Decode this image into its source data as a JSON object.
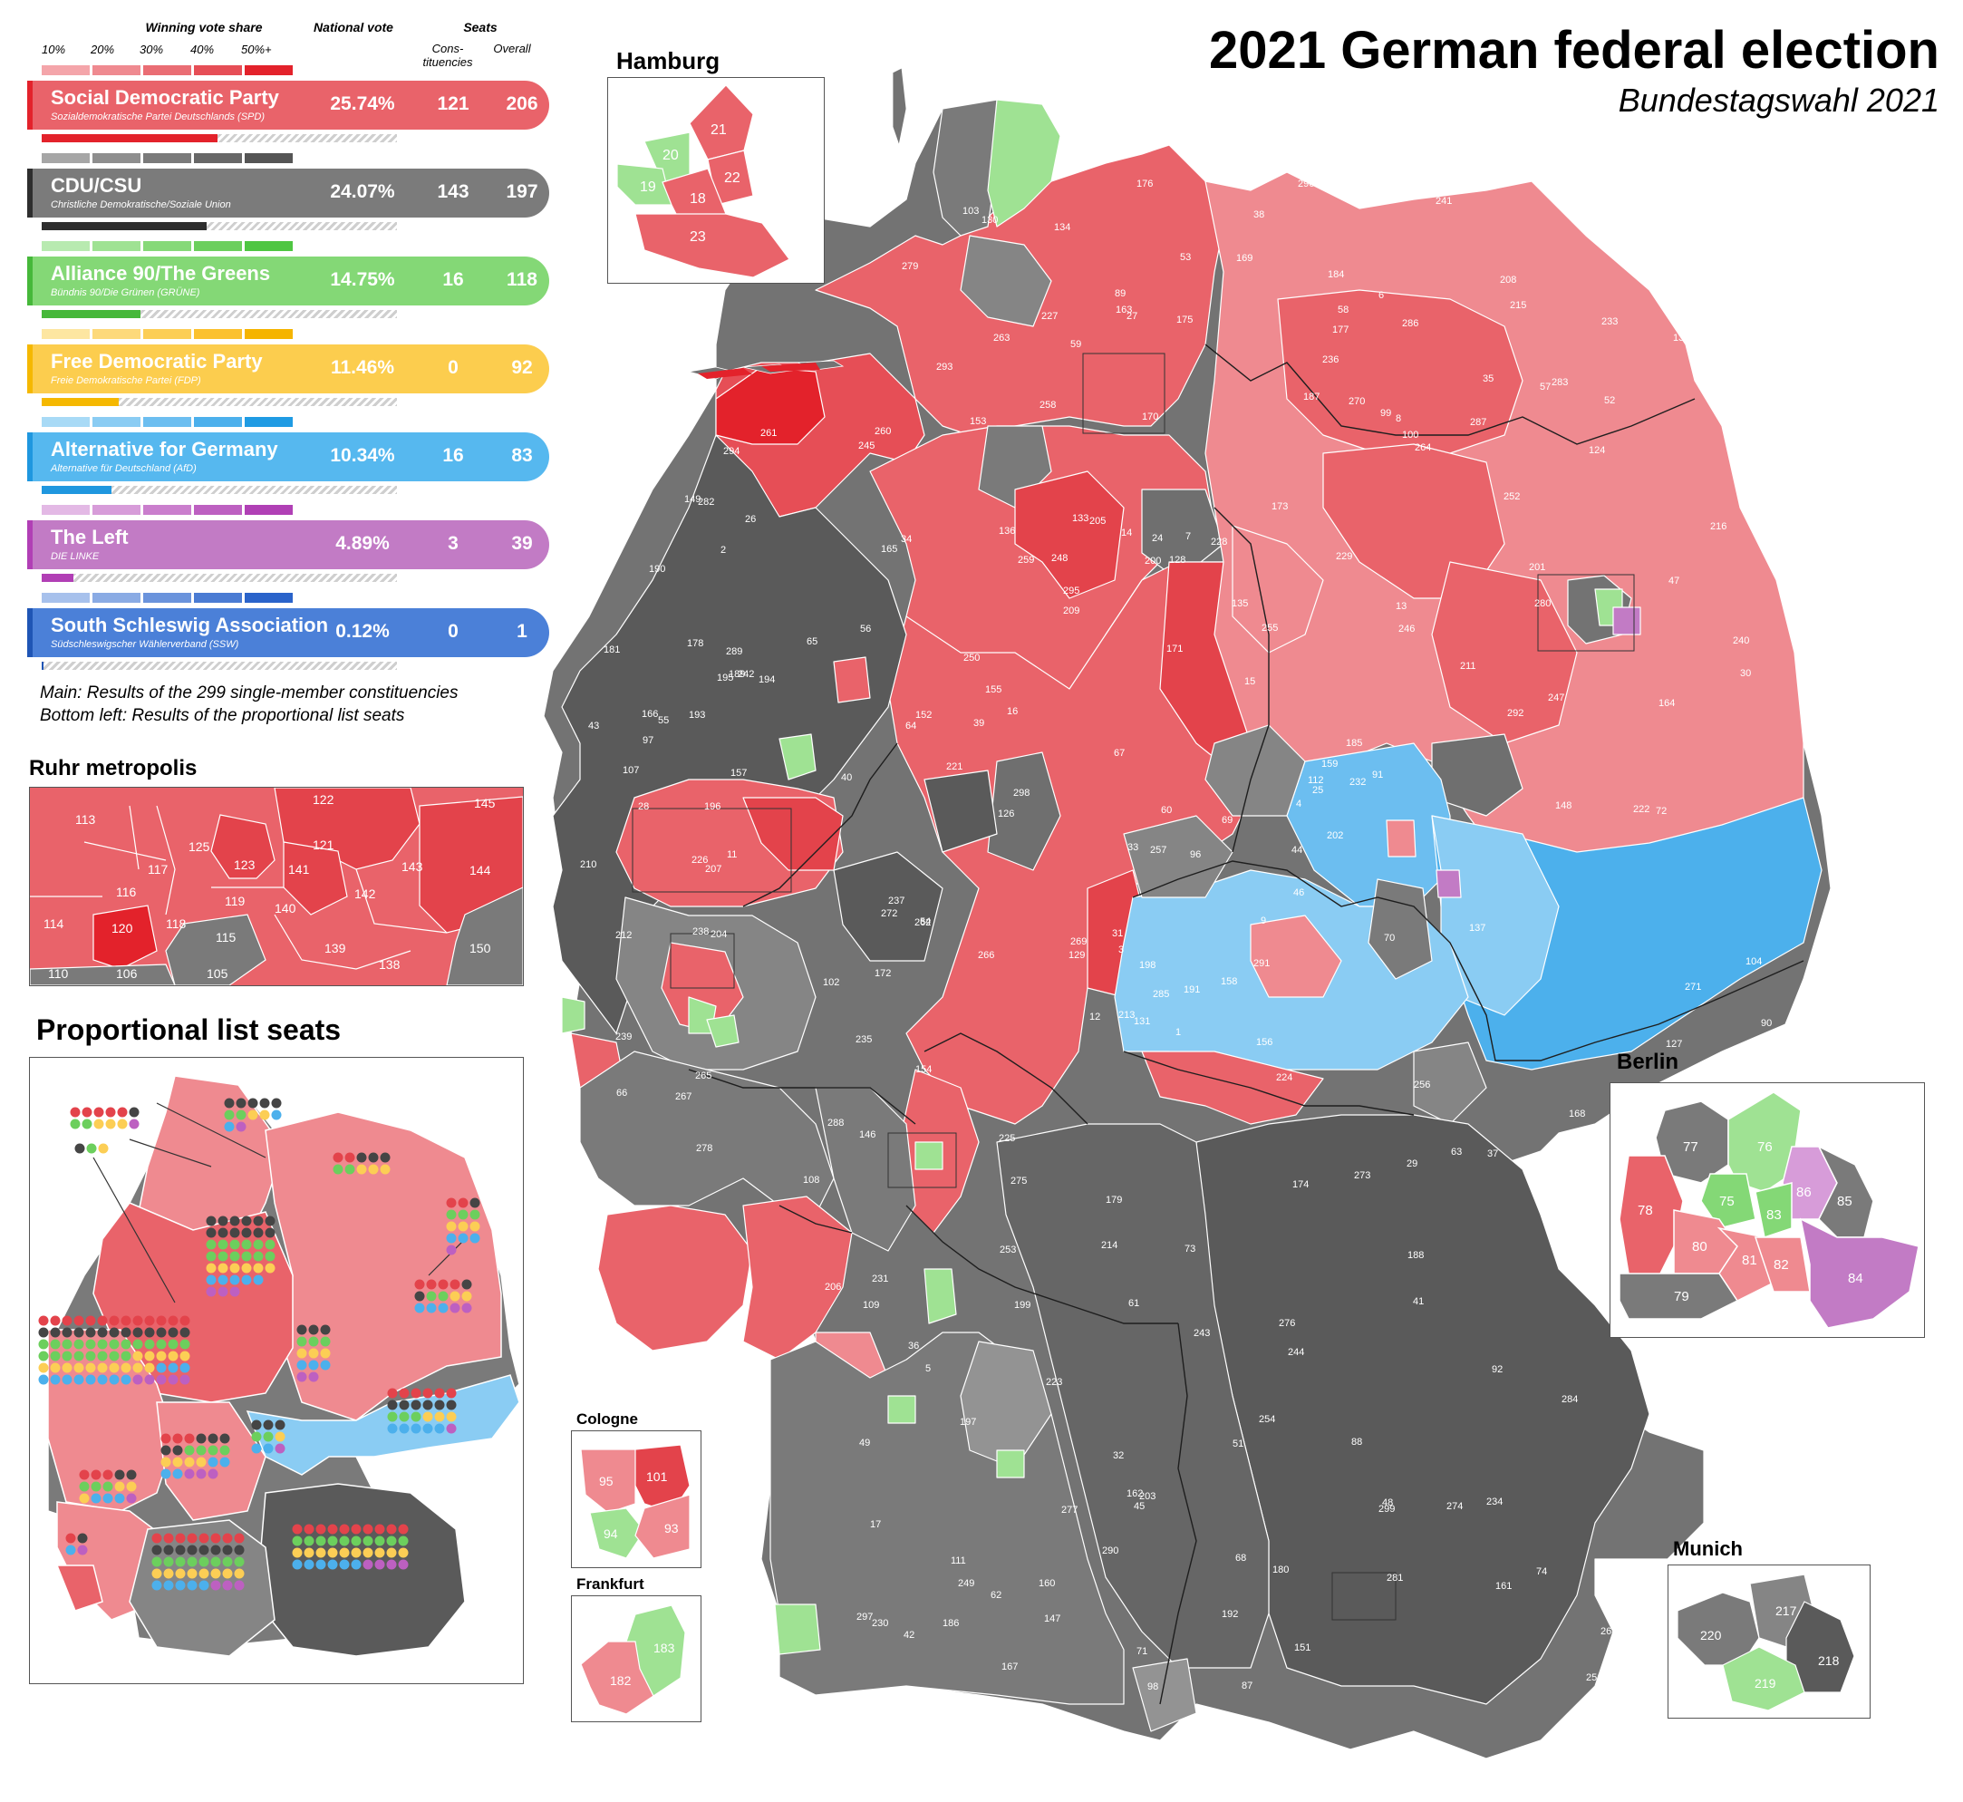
{
  "title": "2021 German federal election",
  "subtitle": "Bundestagswahl 2021",
  "legend": {
    "header_share": "Winning vote share",
    "header_national": "National vote",
    "header_seats": "Seats",
    "header_const": "Cons-tituencies",
    "header_overall": "Overall",
    "scale": [
      "10%",
      "20%",
      "30%",
      "40%",
      "50%+"
    ],
    "parties": [
      {
        "name": "Social Democratic Party",
        "native": "Sozialdemokratische Partei Deutschlands (SPD)",
        "vote": "25.74%",
        "const": "121",
        "overall": "206",
        "color": "#e9636a",
        "bar": "#e3222b",
        "scale": [
          "#f4a5aa",
          "#ef8a90",
          "#ea6d74",
          "#e64e56",
          "#e3222b"
        ],
        "list_fraction": 0.187
      },
      {
        "name": "CDU/CSU",
        "native": "Christliche Demokratische/Soziale Union",
        "vote": "24.07%",
        "const": "143",
        "overall": "197",
        "color": "#7b7b7b",
        "bar": "#2e2e2e",
        "scale": [
          "#a6a6a6",
          "#8e8e8e",
          "#7a7a7a",
          "#676767",
          "#555555"
        ],
        "list_fraction": 0.175
      },
      {
        "name": "Alliance 90/The Greens",
        "native": "Bündnis 90/Die Grünen (GRÜNE)",
        "vote": "14.75%",
        "const": "16",
        "overall": "118",
        "color": "#84d876",
        "bar": "#46b83a",
        "scale": [
          "#b8eab0",
          "#9fe293",
          "#86d978",
          "#6ccf5d",
          "#4fc642"
        ],
        "list_fraction": 0.105
      },
      {
        "name": "Free Democratic Party",
        "native": "Freie Demokratische Partei (FDP)",
        "vote": "11.46%",
        "const": "0",
        "overall": "92",
        "color": "#fccd4e",
        "bar": "#f5b800",
        "scale": [
          "#fde6a1",
          "#fdd97a",
          "#fcce55",
          "#fbc12e",
          "#f5b400"
        ],
        "list_fraction": 0.082
      },
      {
        "name": "Alternative for Germany",
        "native": "Alternative für Deutschland (AfD)",
        "vote": "10.34%",
        "const": "16",
        "overall": "83",
        "color": "#56b8ef",
        "bar": "#1f97df",
        "scale": [
          "#a8daf6",
          "#8accf3",
          "#6cbef0",
          "#4cb0ec",
          "#1f9be3"
        ],
        "list_fraction": 0.074
      },
      {
        "name": "The Left",
        "native": "DIE LINKE",
        "vote": "4.89%",
        "const": "3",
        "overall": "39",
        "color": "#c27bc5",
        "bar": "#b13fb5",
        "scale": [
          "#e3b9e5",
          "#d79cd9",
          "#ca7ecd",
          "#bd60c1",
          "#b040b5"
        ],
        "list_fraction": 0.034
      },
      {
        "name": "South Schleswig Association",
        "native": "Südschleswigscher Wählerverband (SSW)",
        "vote": "0.12%",
        "const": "0",
        "overall": "1",
        "color": "#4b80d8",
        "bar": "#1f55b5",
        "scale": [
          "#a7c1ec",
          "#8aabe4",
          "#6a93dc",
          "#4a7bd3",
          "#2a63ca"
        ],
        "list_fraction": 0.001
      }
    ]
  },
  "notes": [
    "Main: Results of the 299 single-member constituencies",
    "Bottom left: Results of the proportional list seats"
  ],
  "insets": {
    "hamburg": {
      "title": "Hamburg",
      "labels": [
        "21",
        "20",
        "22",
        "19",
        "18",
        "23"
      ]
    },
    "ruhr": {
      "title": "Ruhr metropolis",
      "labels": [
        "113",
        "122",
        "145",
        "121",
        "125",
        "117",
        "123",
        "141",
        "143",
        "144",
        "116",
        "142",
        "119",
        "140",
        "114",
        "118",
        "120",
        "115",
        "139",
        "150",
        "138",
        "110",
        "106",
        "105"
      ]
    },
    "proportional": {
      "title": "Proportional list seats"
    },
    "berlin": {
      "title": "Berlin",
      "labels": [
        "77",
        "76",
        "78",
        "75",
        "86",
        "85",
        "83",
        "80",
        "81",
        "82",
        "79",
        "84"
      ]
    },
    "cologne": {
      "title": "Cologne",
      "labels": [
        "101",
        "95",
        "94",
        "93"
      ]
    },
    "frankfurt": {
      "title": "Frankfurt",
      "labels": [
        "183",
        "182"
      ]
    },
    "munich": {
      "title": "Munich",
      "labels": [
        "217",
        "220",
        "218",
        "219"
      ]
    }
  },
  "map_labels": [
    "1",
    "2",
    "3",
    "4",
    "5",
    "6",
    "7",
    "8",
    "9",
    "10",
    "11",
    "12",
    "13",
    "14",
    "15",
    "16",
    "17",
    "24",
    "25",
    "26",
    "27",
    "28",
    "29",
    "30",
    "31",
    "32",
    "33",
    "34",
    "35",
    "36",
    "37",
    "38",
    "39",
    "40",
    "41",
    "42",
    "43",
    "44",
    "45",
    "46",
    "47",
    "48",
    "49",
    "50",
    "51",
    "52",
    "53",
    "54",
    "55",
    "56",
    "57",
    "58",
    "59",
    "60",
    "61",
    "62",
    "63",
    "64",
    "65",
    "66",
    "67",
    "68",
    "69",
    "70",
    "71",
    "72",
    "73",
    "74",
    "87",
    "88",
    "89",
    "90",
    "91",
    "92",
    "96",
    "97",
    "98",
    "99",
    "100",
    "102",
    "103",
    "104",
    "107",
    "108",
    "109",
    "111",
    "112",
    "124",
    "126",
    "127",
    "128",
    "129",
    "130",
    "131",
    "132",
    "133",
    "134",
    "135",
    "136",
    "137",
    "146",
    "147",
    "148",
    "149",
    "151",
    "152",
    "153",
    "154",
    "155",
    "156",
    "157",
    "158",
    "159",
    "160",
    "161",
    "162",
    "163",
    "164",
    "165",
    "166",
    "167",
    "168",
    "169",
    "170",
    "171",
    "172",
    "173",
    "174",
    "175",
    "176",
    "177",
    "178",
    "179",
    "180",
    "181",
    "184",
    "185",
    "186",
    "187",
    "188",
    "189",
    "190",
    "191",
    "192",
    "193",
    "194",
    "195",
    "196",
    "197",
    "198",
    "199",
    "200",
    "201",
    "202",
    "203",
    "204",
    "205",
    "206",
    "207",
    "208",
    "209",
    "210",
    "211",
    "212",
    "213",
    "214",
    "215",
    "216",
    "221",
    "222",
    "223",
    "224",
    "225",
    "226",
    "227",
    "228",
    "229",
    "230",
    "231",
    "232",
    "233",
    "234",
    "235",
    "236",
    "237",
    "238",
    "239",
    "240",
    "241",
    "242",
    "243",
    "244",
    "245",
    "246",
    "247",
    "248",
    "249",
    "250",
    "251",
    "252",
    "253",
    "254",
    "255",
    "256",
    "257",
    "258",
    "259",
    "260",
    "261",
    "262",
    "263",
    "264",
    "265",
    "266",
    "267",
    "268",
    "269",
    "270",
    "271",
    "272",
    "273",
    "274",
    "275",
    "276",
    "277",
    "278",
    "279",
    "280",
    "281",
    "282",
    "283",
    "284",
    "285",
    "286",
    "287",
    "288",
    "289",
    "290",
    "291",
    "292",
    "293",
    "294",
    "295",
    "296",
    "297",
    "298",
    "299"
  ]
}
